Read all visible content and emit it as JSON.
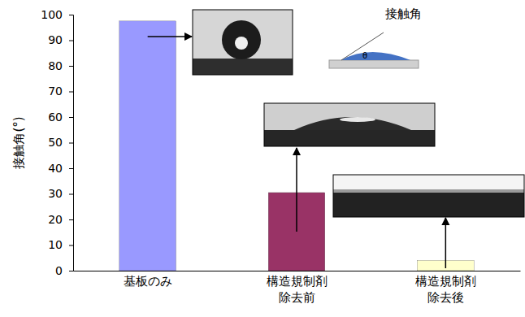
{
  "chart_data": {
    "type": "bar",
    "y_label": "接触角(°)",
    "categories": [
      "基板のみ",
      "構造規制剤\n除去前",
      "構造規制剤\n除去後"
    ],
    "values": [
      97.5,
      30.5,
      4
    ],
    "colors": [
      "#9999ff",
      "#993366",
      "#ffffcc"
    ],
    "ylim": [
      0,
      100
    ],
    "yticks": [
      0,
      10,
      20,
      30,
      40,
      50,
      60,
      70,
      80,
      90,
      100
    ],
    "grid": false,
    "annotations": [
      "接触角",
      "θ"
    ]
  }
}
